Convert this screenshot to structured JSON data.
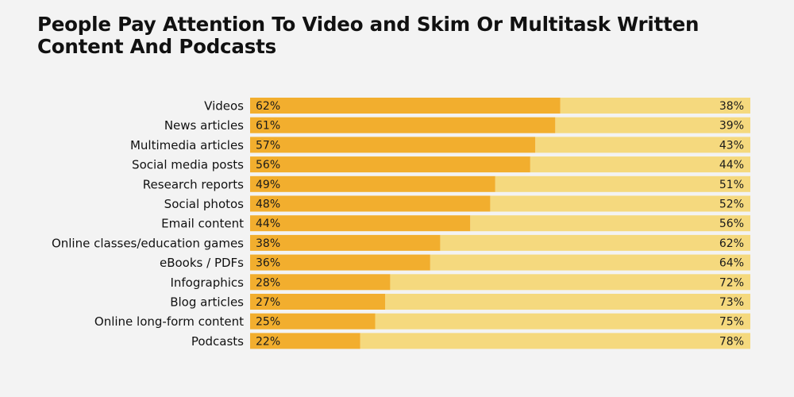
{
  "title": "People Pay Attention To Video and Skim Or Multitask Written Content And Podcasts",
  "colors": {
    "background": "#f3f3f3",
    "attention": "#f2ae2e",
    "skim": "#f5d97e",
    "text": "#111111"
  },
  "chart_data": {
    "type": "bar",
    "orientation": "horizontal",
    "stacked": true,
    "percent_stacked": true,
    "title": "People Pay Attention To Video and Skim Or Multitask Written Content And Podcasts",
    "xlabel": "",
    "ylabel": "",
    "xlim": [
      0,
      100
    ],
    "grid": false,
    "legend": "none",
    "categories": [
      "Videos",
      "News articles",
      "Multimedia articles",
      "Social media posts",
      "Research reports",
      "Social photos",
      "Email content",
      "Online classes/education games",
      "eBooks / PDFs",
      "Infographics",
      "Blog articles",
      "Online long-form content",
      "Podcasts"
    ],
    "series": [
      {
        "values": [
          62,
          61,
          57,
          56,
          49,
          48,
          44,
          38,
          36,
          28,
          27,
          25,
          22
        ],
        "labels": [
          "62%",
          "61%",
          "57%",
          "56%",
          "49%",
          "48%",
          "44%",
          "38%",
          "36%",
          "28%",
          "27%",
          "25%",
          "22%"
        ]
      },
      {
        "values": [
          38,
          39,
          43,
          44,
          51,
          52,
          56,
          62,
          64,
          72,
          73,
          75,
          78
        ],
        "labels": [
          "38%",
          "39%",
          "43%",
          "44%",
          "51%",
          "52%",
          "56%",
          "62%",
          "64%",
          "72%",
          "73%",
          "75%",
          "78%"
        ]
      }
    ]
  }
}
